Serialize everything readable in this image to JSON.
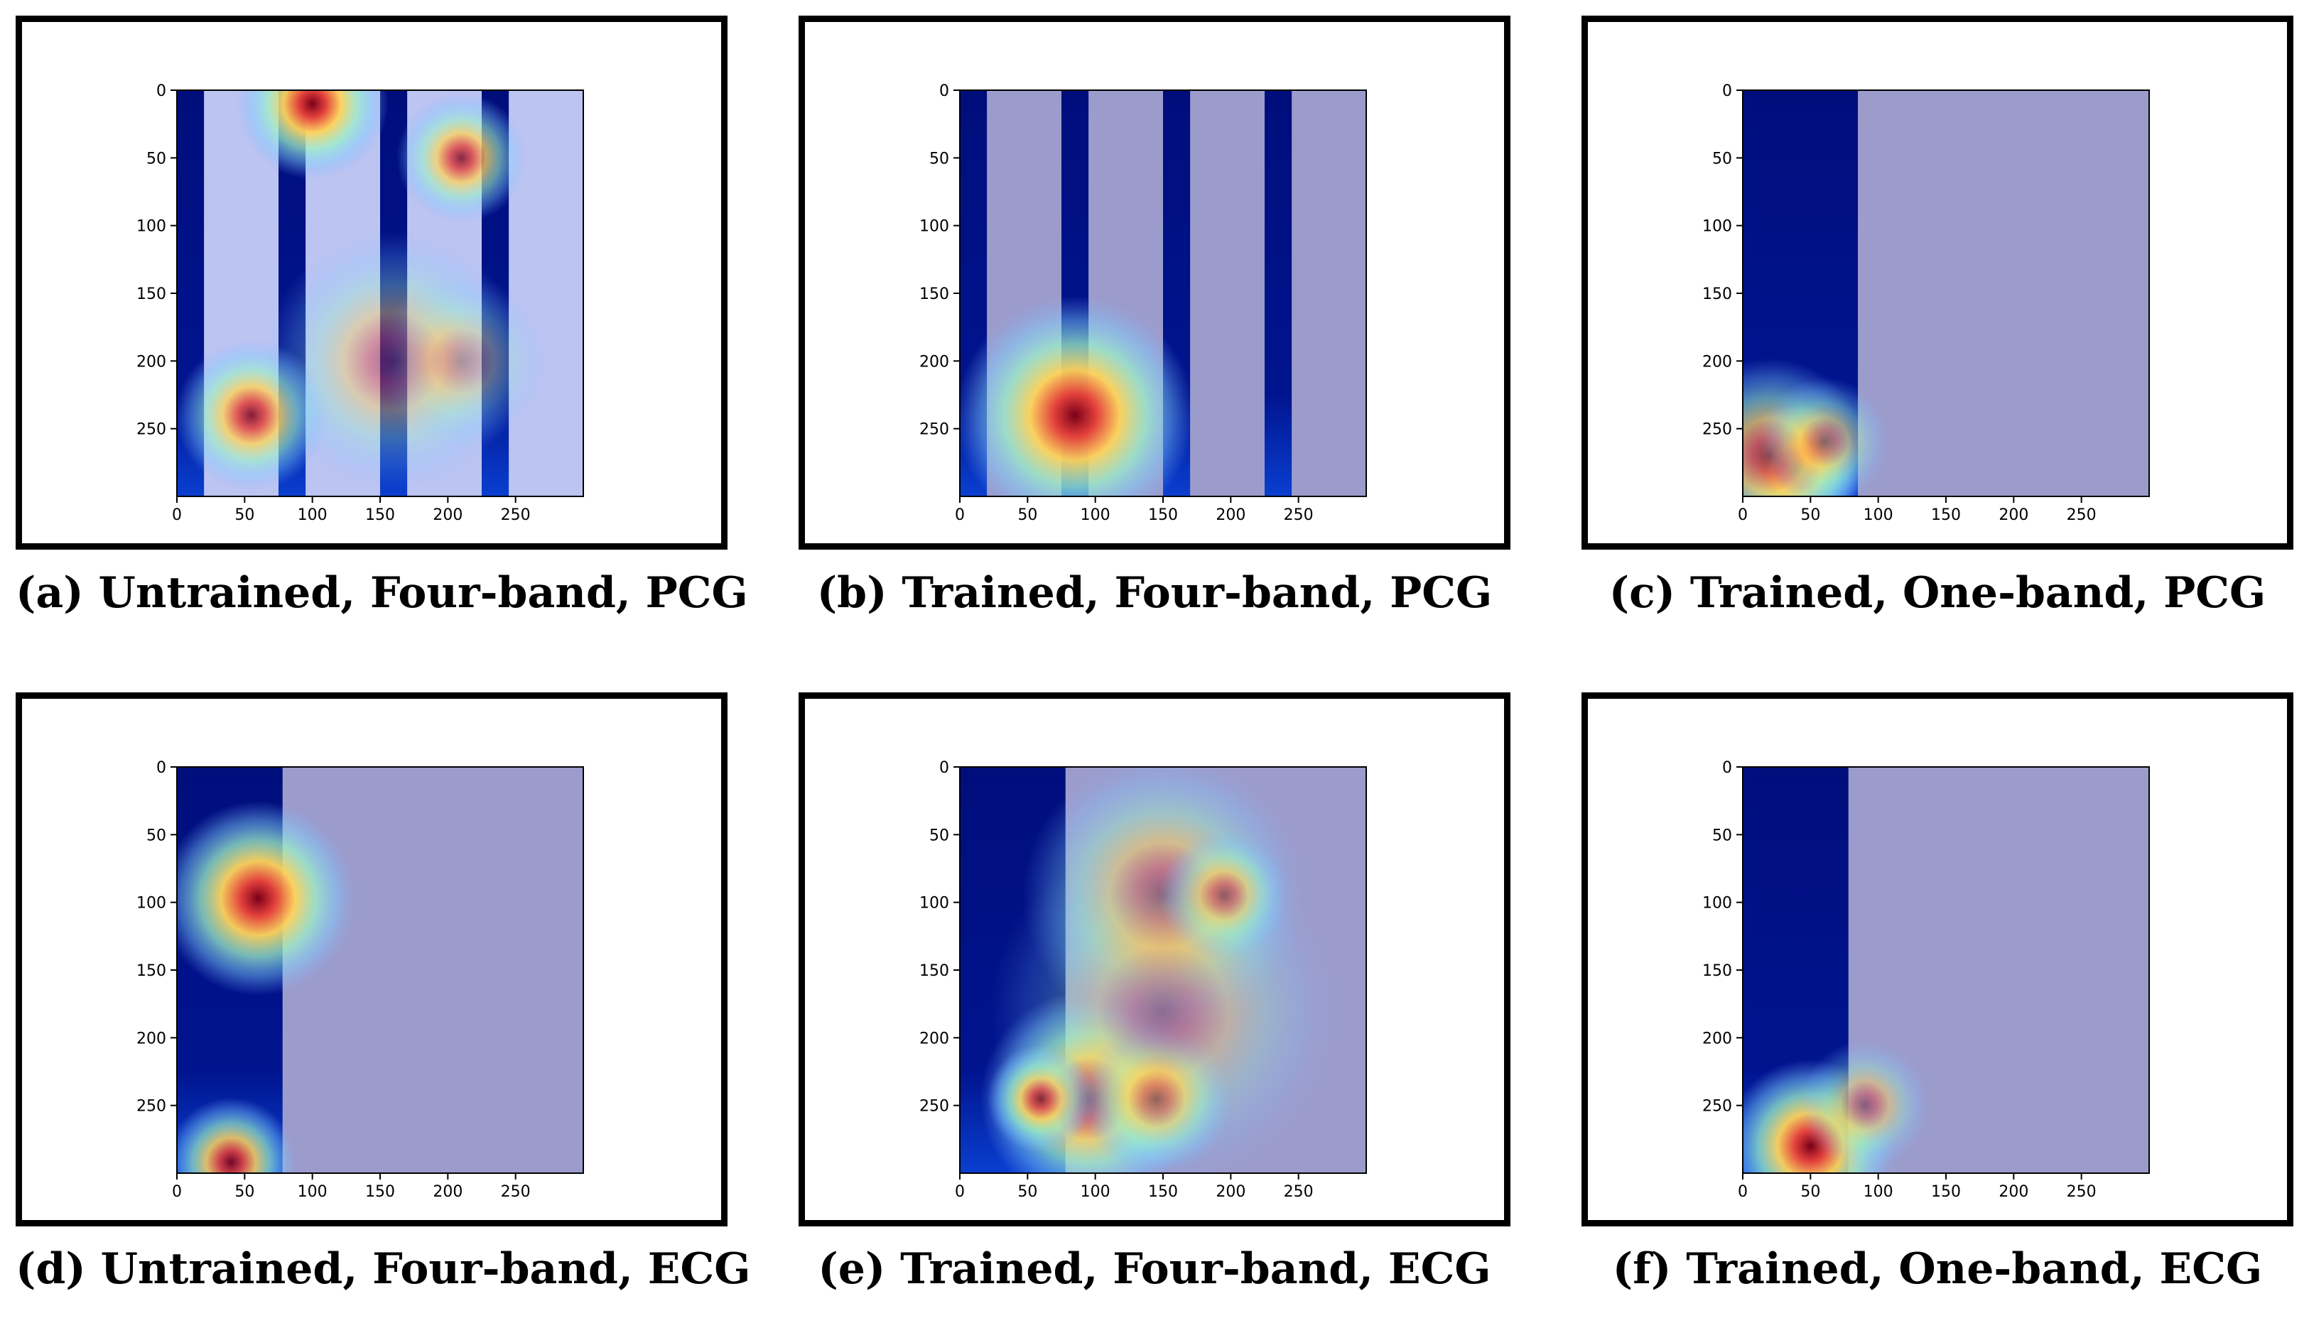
{
  "figure": {
    "panels": [
      {
        "id": "a",
        "label": "(a)",
        "title": "Untrained, Four-band, PCG"
      },
      {
        "id": "b",
        "label": "(b)",
        "title": "Trained, Four-band, PCG"
      },
      {
        "id": "c",
        "label": "(c)",
        "title": "Trained, One-band, PCG"
      },
      {
        "id": "d",
        "label": "(d)",
        "title": "Untrained, Four-band, ECG"
      },
      {
        "id": "e",
        "label": "(e)",
        "title": "Trained, Four-band, ECG"
      },
      {
        "id": "f",
        "label": "(f)",
        "title": "Trained, One-band, ECG"
      }
    ]
  },
  "chart_data": [
    {
      "type": "heatmap",
      "panel": "a",
      "title": "Untrained, Four-band, PCG",
      "xlim": [
        0,
        300
      ],
      "ylim": [
        300,
        0
      ],
      "xticks": [
        0,
        50,
        100,
        150,
        200,
        250
      ],
      "yticks": [
        0,
        50,
        100,
        150,
        200,
        250
      ],
      "base_overlay": "light",
      "bands": [
        [
          0,
          20
        ],
        [
          75,
          95
        ],
        [
          150,
          170
        ],
        [
          225,
          245
        ]
      ],
      "hotspots": [
        {
          "x": 100,
          "y": 10,
          "r": 35,
          "v": 1.0
        },
        {
          "x": 210,
          "y": 50,
          "r": 30,
          "v": 0.8
        },
        {
          "x": 55,
          "y": 240,
          "r": 35,
          "v": 0.85
        },
        {
          "x": 160,
          "y": 200,
          "r": 60,
          "v": 0.45
        },
        {
          "x": 210,
          "y": 200,
          "r": 40,
          "v": 0.3
        }
      ]
    },
    {
      "type": "heatmap",
      "panel": "b",
      "title": "Trained, Four-band, PCG",
      "xlim": [
        0,
        300
      ],
      "ylim": [
        300,
        0
      ],
      "xticks": [
        0,
        50,
        100,
        150,
        200,
        250
      ],
      "yticks": [
        0,
        50,
        100,
        150,
        200,
        250
      ],
      "base_overlay": "flat",
      "bands": [
        [
          0,
          20
        ],
        [
          75,
          95
        ],
        [
          150,
          170
        ],
        [
          225,
          245
        ]
      ],
      "hotspots": [
        {
          "x": 85,
          "y": 240,
          "r": 55,
          "v": 1.0
        }
      ]
    },
    {
      "type": "heatmap",
      "panel": "c",
      "title": "Trained, One-band, PCG",
      "xlim": [
        0,
        300
      ],
      "ylim": [
        300,
        0
      ],
      "xticks": [
        0,
        50,
        100,
        150,
        200,
        250
      ],
      "yticks": [
        0,
        50,
        100,
        150,
        200,
        250
      ],
      "base_overlay": "flat",
      "bands": [
        [
          0,
          85
        ]
      ],
      "hotspots": [
        {
          "x": 40,
          "y": 280,
          "r": 30,
          "v": 1.0
        },
        {
          "x": 20,
          "y": 270,
          "r": 45,
          "v": 0.75
        },
        {
          "x": 60,
          "y": 260,
          "r": 30,
          "v": 0.55
        }
      ]
    },
    {
      "type": "heatmap",
      "panel": "d",
      "title": "Untrained, Four-band, ECG",
      "xlim": [
        0,
        300
      ],
      "ylim": [
        300,
        0
      ],
      "xticks": [
        0,
        50,
        100,
        150,
        200,
        250
      ],
      "yticks": [
        0,
        50,
        100,
        150,
        200,
        250
      ],
      "base_overlay": "flat",
      "bands": [
        [
          0,
          78
        ]
      ],
      "hotspots": [
        {
          "x": 60,
          "y": 97,
          "r": 45,
          "v": 1.0
        },
        {
          "x": 40,
          "y": 292,
          "r": 30,
          "v": 0.9
        }
      ]
    },
    {
      "type": "heatmap",
      "panel": "e",
      "title": "Trained, Four-band, ECG",
      "xlim": [
        0,
        300
      ],
      "ylim": [
        300,
        0
      ],
      "xticks": [
        0,
        50,
        100,
        150,
        200,
        250
      ],
      "yticks": [
        0,
        50,
        100,
        150,
        200,
        250
      ],
      "base_overlay": "flat",
      "bands": [
        [
          0,
          78
        ]
      ],
      "hotspots": [
        {
          "x": 150,
          "y": 95,
          "r": 65,
          "v": 0.6
        },
        {
          "x": 195,
          "y": 95,
          "r": 30,
          "v": 0.7
        },
        {
          "x": 95,
          "y": 245,
          "r": 50,
          "v": 0.95
        },
        {
          "x": 145,
          "y": 245,
          "r": 35,
          "v": 0.8
        },
        {
          "x": 60,
          "y": 245,
          "r": 25,
          "v": 0.9
        },
        {
          "x": 150,
          "y": 180,
          "r": 80,
          "v": 0.35
        }
      ]
    },
    {
      "type": "heatmap",
      "panel": "f",
      "title": "Trained, One-band, ECG",
      "xlim": [
        0,
        300
      ],
      "ylim": [
        300,
        0
      ],
      "xticks": [
        0,
        50,
        100,
        150,
        200,
        250
      ],
      "yticks": [
        0,
        50,
        100,
        150,
        200,
        250
      ],
      "base_overlay": "flat",
      "bands": [
        [
          0,
          78
        ]
      ],
      "hotspots": [
        {
          "x": 50,
          "y": 280,
          "r": 40,
          "v": 1.0
        },
        {
          "x": 90,
          "y": 250,
          "r": 30,
          "v": 0.5
        }
      ]
    }
  ]
}
